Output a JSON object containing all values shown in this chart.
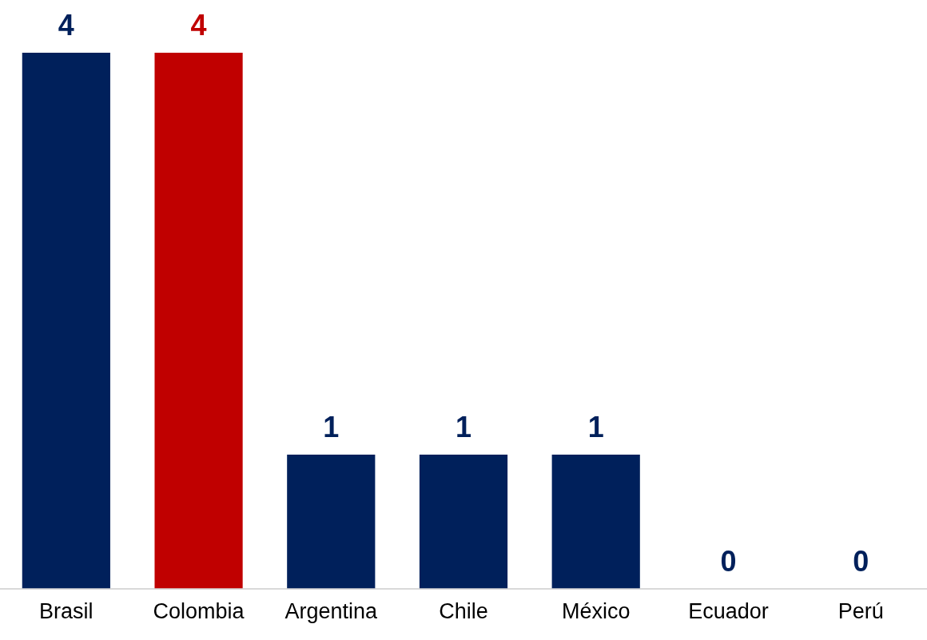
{
  "chart_data": {
    "type": "bar",
    "categories": [
      "Brasil",
      "Colombia",
      "Argentina",
      "Chile",
      "México",
      "Ecuador",
      "Perú"
    ],
    "values": [
      4,
      4,
      1,
      1,
      1,
      0,
      0
    ],
    "colors": [
      "#00205b",
      "#c00000",
      "#00205b",
      "#00205b",
      "#00205b",
      "#00205b",
      "#00205b"
    ],
    "data_labels": true,
    "grid": false,
    "legend": false
  }
}
